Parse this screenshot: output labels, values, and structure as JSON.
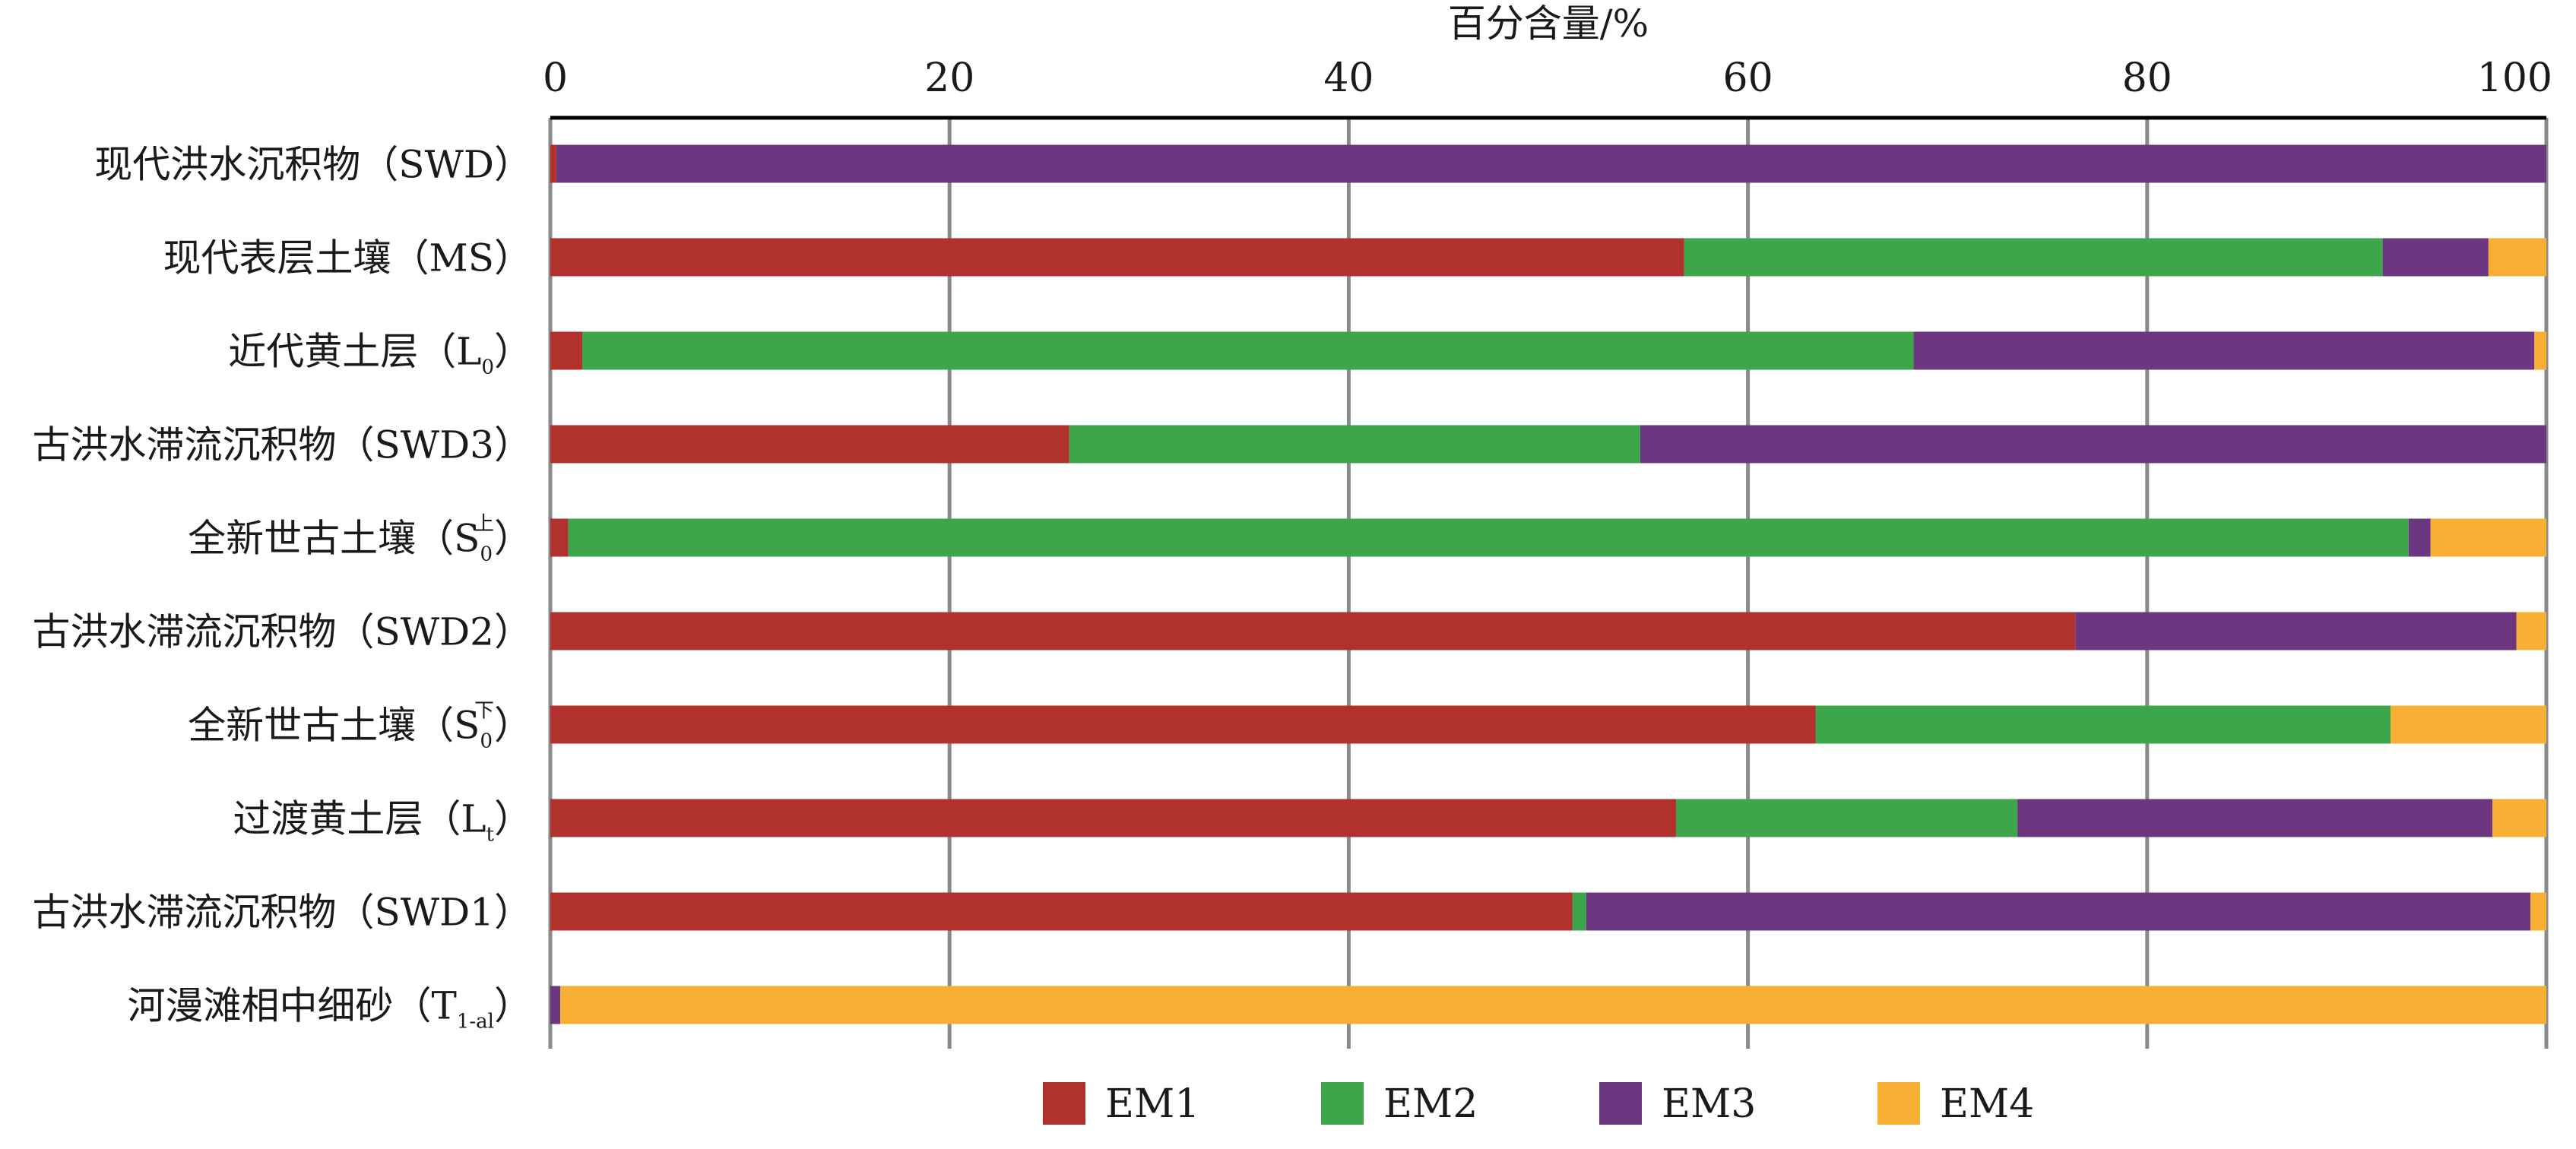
{
  "chart_data": {
    "type": "bar",
    "orientation": "horizontal",
    "stacked": true,
    "title": "",
    "xlabel": "百分含量/%",
    "xlim": [
      0,
      100
    ],
    "x_ticks": [
      0,
      20,
      40,
      60,
      80,
      100
    ],
    "x_tick_labels": [
      "0",
      "20",
      "40",
      "60",
      "80",
      "100"
    ],
    "x_axis_position": "top",
    "grid": true,
    "legend_position": "bottom",
    "categories": [
      {
        "main": "现代洪水沉积物（SWD）",
        "sub": "",
        "sup": "",
        "tail": ""
      },
      {
        "main": "现代表层土壤（MS）",
        "sub": "",
        "sup": "",
        "tail": ""
      },
      {
        "main": "近代黄土层（L",
        "sub": "0",
        "sup": "",
        "tail": "）"
      },
      {
        "main": "古洪水滞流沉积物（SWD3）",
        "sub": "",
        "sup": "",
        "tail": ""
      },
      {
        "main": "全新世古土壤（S",
        "sub": "0",
        "sup": "上",
        "tail": "）"
      },
      {
        "main": "古洪水滞流沉积物（SWD2）",
        "sub": "",
        "sup": "",
        "tail": ""
      },
      {
        "main": "全新世古土壤（S",
        "sub": "0",
        "sup": "下",
        "tail": "）"
      },
      {
        "main": "过渡黄土层（L",
        "sub": "t",
        "sup": "",
        "tail": "）"
      },
      {
        "main": "古洪水滞流沉积物（SWD1）",
        "sub": "",
        "sup": "",
        "tail": ""
      },
      {
        "main": "河漫滩相中细砂（T",
        "sub": "1-al",
        "sup": "",
        "tail": "）"
      }
    ],
    "series": [
      {
        "name": "EM1",
        "color": "#B0312D",
        "values": [
          0.3,
          56.8,
          1.6,
          26.0,
          0.9,
          76.4,
          63.4,
          56.4,
          51.2,
          0
        ]
      },
      {
        "name": "EM2",
        "color": "#3DA64A",
        "values": [
          0,
          35.0,
          66.7,
          28.6,
          92.2,
          0,
          28.8,
          17.1,
          0.7,
          0
        ]
      },
      {
        "name": "EM3",
        "color": "#6D3681",
        "values": [
          99.7,
          5.3,
          31.1,
          45.4,
          1.1,
          22.1,
          0,
          23.8,
          47.3,
          0.5
        ]
      },
      {
        "name": "EM4",
        "color": "#F7B034",
        "values": [
          0,
          2.9,
          0.6,
          0,
          5.8,
          1.5,
          7.8,
          2.7,
          0.8,
          99.5
        ]
      }
    ]
  }
}
